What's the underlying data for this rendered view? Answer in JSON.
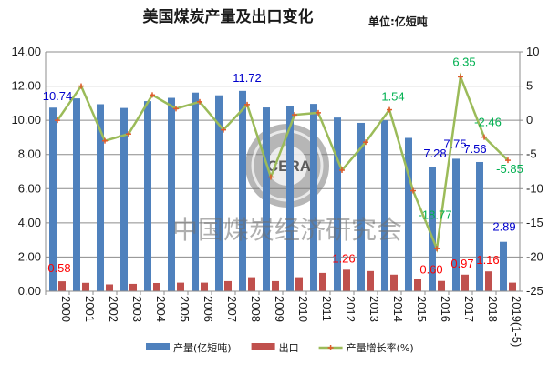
{
  "chart_data": {
    "type": "bar",
    "title": "美国煤炭产量及出口变化",
    "unit": "单位:亿短吨",
    "categories": [
      "2000",
      "2001",
      "2002",
      "2003",
      "2004",
      "2005",
      "2006",
      "2007",
      "2008",
      "2009",
      "2010",
      "2011",
      "2012",
      "2013",
      "2014",
      "2015",
      "2016",
      "2017",
      "2018",
      "2019(1-5)"
    ],
    "ylim": [
      0,
      14
    ],
    "y_ticks": [
      "0.00",
      "2.00",
      "4.00",
      "6.00",
      "8.00",
      "10.00",
      "12.00",
      "14.00"
    ],
    "y2lim": [
      -25,
      10
    ],
    "y2_ticks": [
      "-25",
      "-20",
      "-15",
      "-10",
      "-5",
      "0",
      "5",
      "10"
    ],
    "grid": true,
    "legend_position": "bottom",
    "series": [
      {
        "name": "产量(亿短吨)",
        "type": "bar",
        "axis": "left",
        "color": "#4f81bd",
        "values": [
          10.74,
          11.28,
          10.94,
          10.72,
          11.12,
          11.31,
          11.62,
          11.46,
          11.72,
          10.75,
          10.84,
          10.96,
          10.16,
          9.85,
          10.0,
          8.97,
          7.28,
          7.75,
          7.56,
          2.89
        ]
      },
      {
        "name": "出口",
        "type": "bar",
        "axis": "left",
        "color": "#c0504d",
        "values": [
          0.58,
          0.49,
          0.4,
          0.43,
          0.48,
          0.5,
          0.5,
          0.59,
          0.82,
          0.59,
          0.82,
          1.07,
          1.26,
          1.18,
          0.97,
          0.74,
          0.6,
          0.97,
          1.16,
          0.5
        ]
      },
      {
        "name": "产量增长率(%)",
        "type": "line",
        "axis": "right",
        "color": "#9bbb59",
        "values": [
          0.0,
          5.0,
          -3.0,
          -2.0,
          3.7,
          1.7,
          2.7,
          -1.4,
          2.3,
          -8.3,
          0.8,
          1.1,
          -7.3,
          -3.2,
          1.54,
          -10.3,
          -18.77,
          6.35,
          -2.46,
          -5.85
        ]
      }
    ],
    "data_labels": [
      {
        "series": 0,
        "index": 0,
        "text": "10.74",
        "color": "#0000cc"
      },
      {
        "series": 0,
        "index": 8,
        "text": "11.72",
        "color": "#0000cc"
      },
      {
        "series": 0,
        "index": 16,
        "text": "7.28",
        "color": "#0000cc"
      },
      {
        "series": 0,
        "index": 17,
        "text": "7.75",
        "color": "#0000cc"
      },
      {
        "series": 0,
        "index": 18,
        "text": "7.56",
        "color": "#0000cc"
      },
      {
        "series": 0,
        "index": 19,
        "text": "2.89",
        "color": "#0000cc"
      },
      {
        "series": 1,
        "index": 0,
        "text": "0.58",
        "color": "#ff0000"
      },
      {
        "series": 1,
        "index": 12,
        "text": "1.26",
        "color": "#ff0000"
      },
      {
        "series": 1,
        "index": 16,
        "text": "0.60",
        "color": "#ff0000"
      },
      {
        "series": 1,
        "index": 17,
        "text": "0.97",
        "color": "#ff0000"
      },
      {
        "series": 1,
        "index": 18,
        "text": "1.16",
        "color": "#ff0000"
      },
      {
        "series": 2,
        "index": 14,
        "text": "1.54",
        "color": "#00b050"
      },
      {
        "series": 2,
        "index": 16,
        "text": "-18.77",
        "color": "#00b050"
      },
      {
        "series": 2,
        "index": 17,
        "text": "6.35",
        "color": "#00b050"
      },
      {
        "series": 2,
        "index": 18,
        "text": "-2.46",
        "color": "#00b050"
      },
      {
        "series": 2,
        "index": 19,
        "text": "-5.85",
        "color": "#00b050"
      }
    ],
    "watermark": "中国煤炭经济研究会",
    "logo_text": "CERA"
  }
}
